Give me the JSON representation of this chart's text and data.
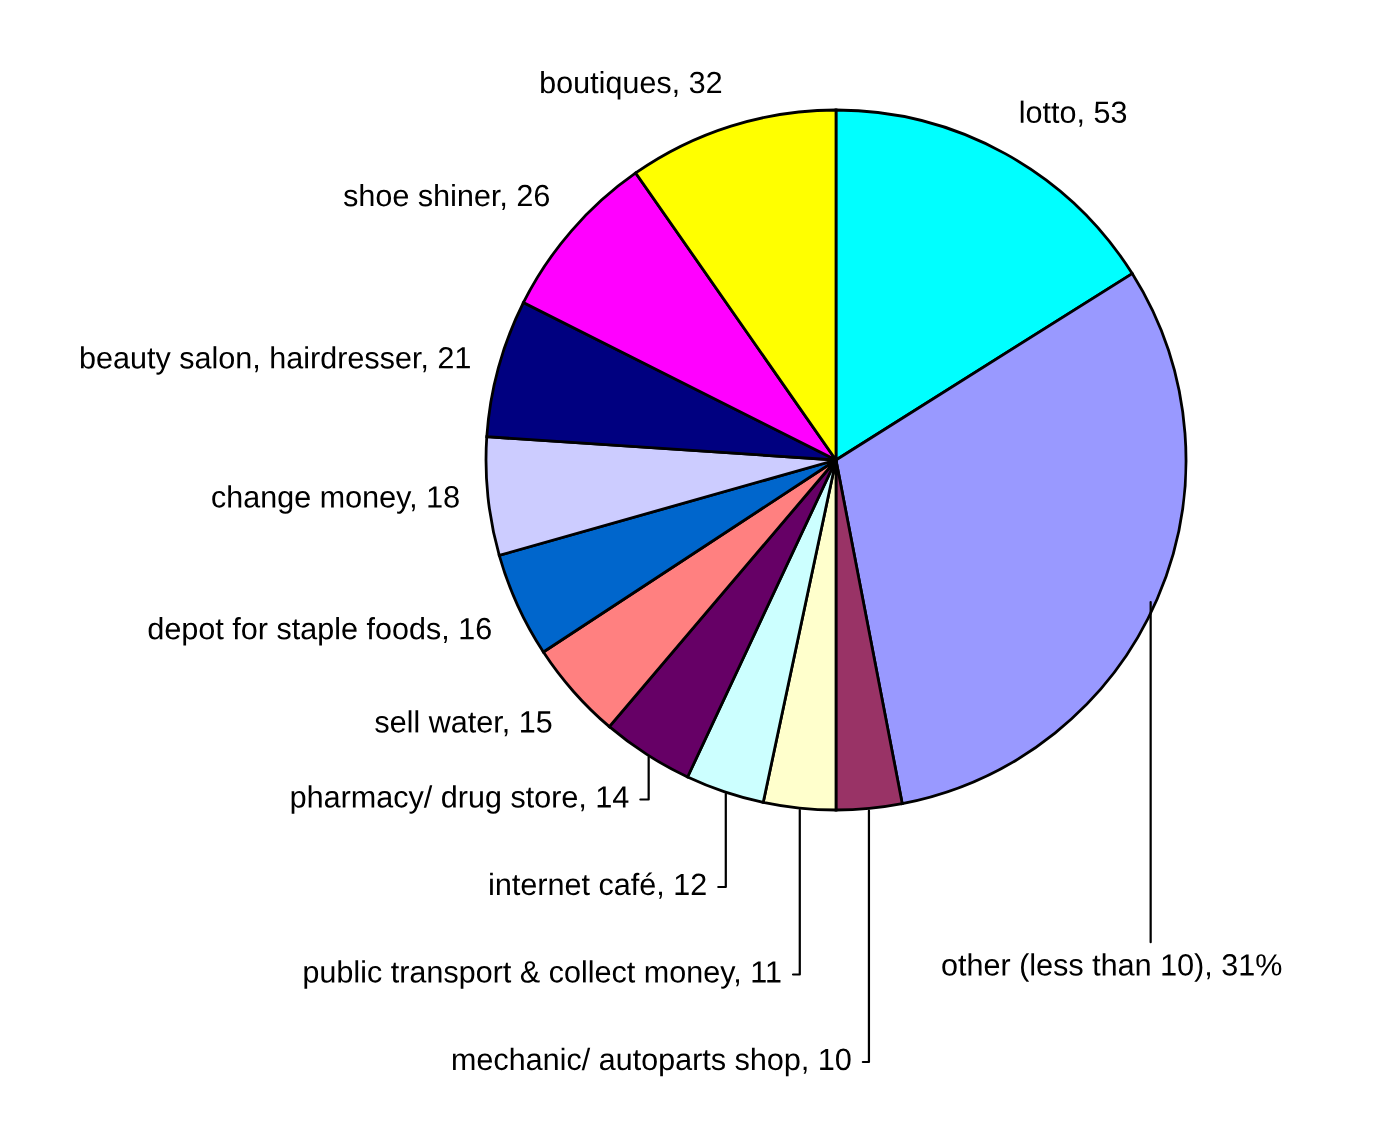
{
  "chart_data": {
    "type": "pie",
    "categories": [
      "lotto",
      "other (less than 10), 31%",
      "mechanic/ autoparts shop",
      "public transport & collect money",
      "internet café",
      "pharmacy/ drug store",
      "sell water",
      "depot for staple foods",
      "change money",
      "beauty salon, hairdresser",
      "shoe shiner",
      "boutiques"
    ],
    "values": [
      53,
      102,
      10,
      11,
      12,
      14,
      15,
      16,
      18,
      21,
      26,
      32
    ],
    "value_labels": [
      "53",
      null,
      "10",
      "11",
      "12",
      "14",
      "15",
      "16",
      "18",
      "21",
      "26",
      "32"
    ],
    "colors": [
      "#00ffff",
      "#9999ff",
      "#993366",
      "#ffffcc",
      "#ccffff",
      "#660066",
      "#ff8080",
      "#0066cc",
      "#ccccff",
      "#000080",
      "#ff00ff",
      "#ffff00"
    ]
  }
}
